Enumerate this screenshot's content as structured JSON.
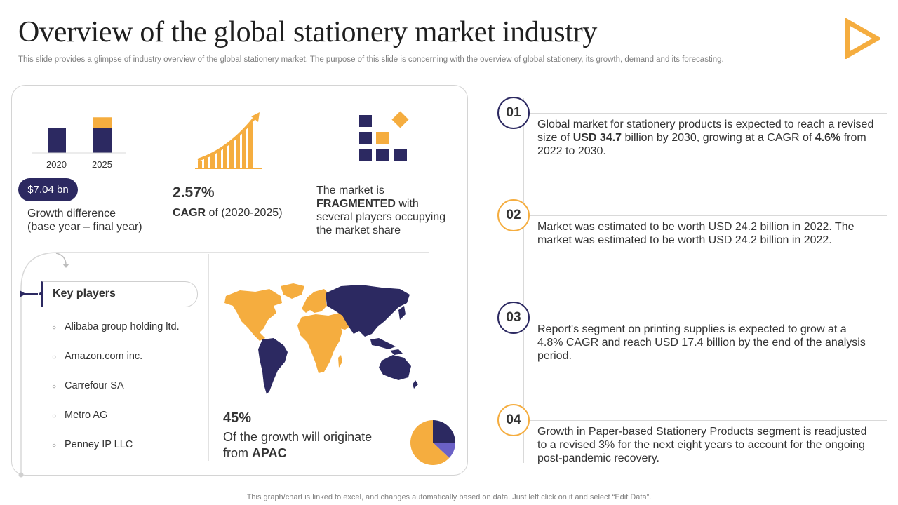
{
  "title": "Overview of the global stationery market industry",
  "subtitle": "This slide provides a glimpse of industry overview  of the global stationery market. The purpose of this slide is concerning with the overview of global stationery, its growth, demand and its forecasting.",
  "colors": {
    "navy": "#2c2961",
    "gold": "#f5ad3f",
    "purple": "#6b61c6"
  },
  "icons": {
    "logo": "play-triangle-outline-icon",
    "growth": "growth-bars-arrow-icon",
    "fragmented": "fragmented-squares-icon",
    "map": "world-map-icon",
    "arrow": "arrow-right-icon"
  },
  "bar_chart": {
    "categories": [
      "2020",
      "2025"
    ],
    "series": [
      {
        "values": [
          1.0,
          1.0
        ]
      },
      {
        "values": [
          0,
          0.45
        ]
      }
    ]
  },
  "growth": {
    "badge": "$7.04 bn",
    "label_line1": "Growth difference",
    "label_line2": "(base year – final year)"
  },
  "cagr": {
    "value": "2.57%",
    "label_bold": "CAGR",
    "label_rest": " of (2020-2025)"
  },
  "fragmented": {
    "pre": "The market is ",
    "bold": "FRAGMENTED",
    "post": " with several players occupying the market share"
  },
  "key_players": {
    "title": "Key players",
    "items": [
      "Alibaba group holding ltd.",
      "Amazon.com inc.",
      "Carrefour SA",
      "Metro AG",
      "Penney IP LLC"
    ]
  },
  "apac": {
    "pct": "45%",
    "text_pre": "Of the growth will originate from ",
    "text_bold": "APAC"
  },
  "pie": {
    "slices": [
      {
        "value": 0.25,
        "color": "#2c2961"
      },
      {
        "value": 0.12,
        "color": "#6b61c6"
      },
      {
        "value": 0.63,
        "color": "#f5ad3f"
      }
    ]
  },
  "timeline": [
    {
      "num": "01",
      "border": "#2c2961",
      "parts": [
        {
          "t": "Global market for stationery products is expected to reach a revised size of "
        },
        {
          "t": "USD 34.7",
          "b": true
        },
        {
          "t": " billion by 2030, growing at a CAGR of "
        },
        {
          "t": "4.6%",
          "b": true
        },
        {
          "t": " from 2022 to 2030."
        }
      ]
    },
    {
      "num": "02",
      "border": "#f5ad3f",
      "parts": [
        {
          "t": "Market was estimated to be worth USD 24.2 billion in 2022. The market was estimated to be worth USD 24.2 billion in 2022."
        }
      ]
    },
    {
      "num": "03",
      "border": "#2c2961",
      "parts": [
        {
          "t": "Report's segment on printing supplies is expected to grow at a 4.8% CAGR and reach USD 17.4 billion by the end of the analysis period."
        }
      ]
    },
    {
      "num": "04",
      "border": "#f5ad3f",
      "parts": [
        {
          "t": "Growth in Paper-based Stationery Products segment is readjusted to a revised 3% for the next eight years to account for the ongoing post-pandemic recovery."
        }
      ]
    }
  ],
  "footer": "This graph/chart is linked to excel,  and changes automatically based on data. Just left click on it and select “Edit Data”."
}
